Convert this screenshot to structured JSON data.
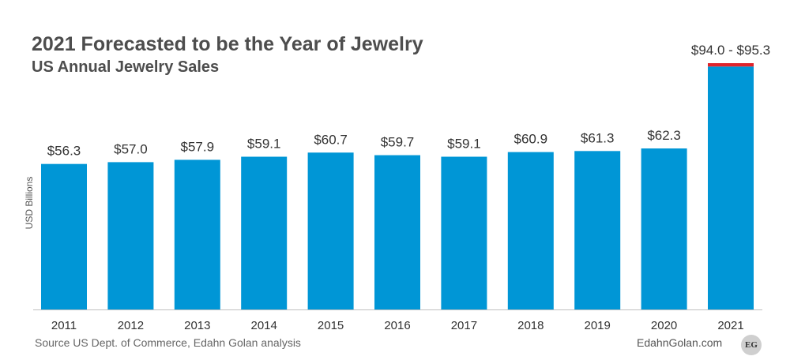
{
  "title": "2021 Forecasted to be the Year of Jewelry",
  "subtitle": "US Annual Jewelry Sales",
  "footer": {
    "source": "Source US Dept. of Commerce, Edahn Golan analysis",
    "site": "EdahnGolan.com",
    "logo_text": "EG"
  },
  "colors": {
    "bar": "#0096d6",
    "forecast_range": "#e0242b",
    "axis": "#bfbfbf"
  },
  "chart_data": {
    "type": "bar",
    "title": "2021 Forecasted to be the Year of Jewelry",
    "subtitle": "US Annual Jewelry Sales",
    "xlabel": "",
    "ylabel": "USD Billions",
    "ylim": [
      0,
      95.3
    ],
    "grid": false,
    "legend": "none",
    "categories": [
      "2011",
      "2012",
      "2013",
      "2014",
      "2015",
      "2016",
      "2017",
      "2018",
      "2019",
      "2020",
      "2021"
    ],
    "values": [
      56.3,
      57.0,
      57.9,
      59.1,
      60.7,
      59.7,
      59.1,
      60.9,
      61.3,
      62.3,
      94.0
    ],
    "data_labels": [
      "$56.3",
      "$57.0",
      "$57.9",
      "$59.1",
      "$60.7",
      "$59.7",
      "$59.1",
      "$60.9",
      "$61.3",
      "$62.3",
      "$94.0 - $95.3"
    ],
    "forecast_range": {
      "category": "2021",
      "low": 94.0,
      "high": 95.3
    }
  }
}
